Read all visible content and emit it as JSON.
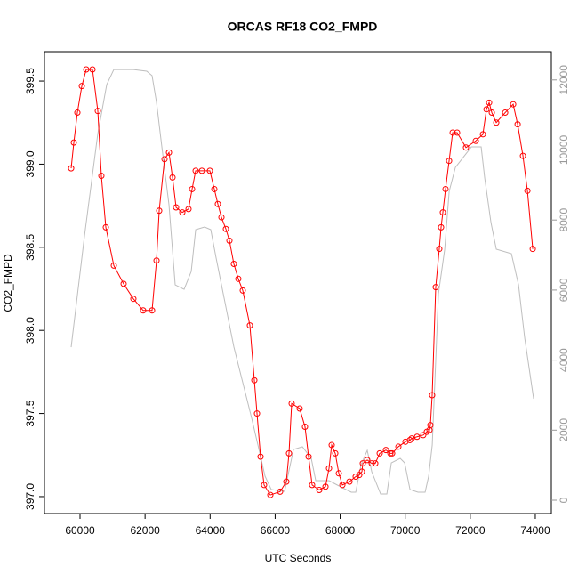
{
  "chart_data": {
    "type": "line",
    "title": "ORCAS RF18 CO2_FMPD",
    "xlabel": "UTC Seconds",
    "ylabel": "CO2_FMPD",
    "xlim": [
      58906,
      74493
    ],
    "xticks": [
      60000,
      62000,
      64000,
      66000,
      68000,
      70000,
      72000,
      74000
    ],
    "ylim": [
      396.898,
      399.677
    ],
    "yticks": [
      {
        "value": 397,
        "label": "397.0"
      },
      397.5,
      {
        "value": 398,
        "label": "398.0"
      },
      398.5,
      {
        "value": 399,
        "label": "399.0"
      },
      399.5
    ],
    "y2lim": [
      -381,
      12808
    ],
    "y2ticks": [
      0,
      2000,
      4000,
      6000,
      8000,
      10000,
      12000
    ],
    "series": [
      {
        "color": "#ff0000",
        "markers": true,
        "x": [
          59727,
          59809,
          59918,
          60055,
          60191,
          60383,
          60547,
          60656,
          60793,
          61039,
          61340,
          61640,
          61941,
          62215,
          62352,
          62434,
          62598,
          62735,
          62844,
          62953,
          63145,
          63336,
          63446,
          63555,
          63746,
          63992,
          64129,
          64238,
          64348,
          64485,
          64594,
          64730,
          64867,
          65004,
          65223,
          65360,
          65442,
          65551,
          65660,
          65852,
          66153,
          66344,
          66426,
          66508,
          66754,
          66918,
          67028,
          67137,
          67356,
          67548,
          67657,
          67739,
          67849,
          67958,
          68068,
          68286,
          68477,
          68587,
          68669,
          68696,
          68833,
          68970,
          69079,
          69216,
          69407,
          69544,
          69599,
          69790,
          70008,
          70145,
          70200,
          70364,
          70555,
          70665,
          70747,
          70774,
          70829,
          70938,
          71047,
          71102,
          71157,
          71239,
          71349,
          71458,
          71595,
          71868,
          72170,
          72388,
          72498,
          72580,
          72662,
          72799,
          73073,
          73319,
          73456,
          73620,
          73757,
          73921
        ],
        "values": [
          398.975,
          399.13,
          399.31,
          399.47,
          399.57,
          399.57,
          399.32,
          398.93,
          398.62,
          398.39,
          398.28,
          398.19,
          398.12,
          398.12,
          398.42,
          398.72,
          399.03,
          399.07,
          398.92,
          398.74,
          398.71,
          398.73,
          398.85,
          398.96,
          398.96,
          398.96,
          398.85,
          398.76,
          398.68,
          398.61,
          398.54,
          398.4,
          398.31,
          398.24,
          398.03,
          397.7,
          397.5,
          397.24,
          397.07,
          397.01,
          397.03,
          397.09,
          397.26,
          397.56,
          397.53,
          397.42,
          397.24,
          397.07,
          397.04,
          397.06,
          397.17,
          397.31,
          397.26,
          397.14,
          397.07,
          397.09,
          397.12,
          397.13,
          397.15,
          397.2,
          397.22,
          397.2,
          397.2,
          397.26,
          397.28,
          397.26,
          397.26,
          397.3,
          397.33,
          397.34,
          397.35,
          397.36,
          397.37,
          397.39,
          397.4,
          397.43,
          397.61,
          398.26,
          398.49,
          398.62,
          398.71,
          398.85,
          399.02,
          399.19,
          399.19,
          399.1,
          399.14,
          399.18,
          399.33,
          399.37,
          399.31,
          399.25,
          399.31,
          399.36,
          399.24,
          399.05,
          398.84,
          398.49
        ]
      },
      {
        "color": "#bebebe",
        "axis": "y2",
        "markers": false,
        "x": [
          59727,
          60137,
          60547,
          60821,
          61039,
          61641,
          62051,
          62215,
          62352,
          62516,
          62735,
          62926,
          63200,
          63419,
          63556,
          63829,
          64020,
          64185,
          64458,
          64732,
          65005,
          65279,
          65470,
          65689,
          65880,
          66291,
          66564,
          66838,
          67111,
          67248,
          67658,
          68068,
          68342,
          68479,
          68643,
          68834,
          68971,
          69244,
          69436,
          69573,
          69846,
          69983,
          70147,
          70393,
          70612,
          70721,
          70831,
          71022,
          71214,
          71351,
          71542,
          72034,
          72335,
          72444,
          72636,
          72800,
          73265,
          73484,
          73675,
          73948
        ],
        "values": [
          4371,
          7547,
          10469,
          11866,
          12298,
          12298,
          12248,
          12121,
          11358,
          10088,
          8436,
          6149,
          6022,
          6530,
          7725,
          7801,
          7725,
          6912,
          5641,
          4371,
          3354,
          2338,
          1575,
          686,
          305,
          254,
          1448,
          1525,
          1194,
          559,
          559,
          356,
          229,
          229,
          1016,
          1423,
          813,
          178,
          178,
          1067,
          1194,
          1067,
          305,
          229,
          229,
          686,
          1575,
          5895,
          7166,
          8817,
          9503,
          10088,
          10088,
          9198,
          7928,
          7166,
          7039,
          6149,
          4625,
          2897
        ]
      }
    ]
  }
}
